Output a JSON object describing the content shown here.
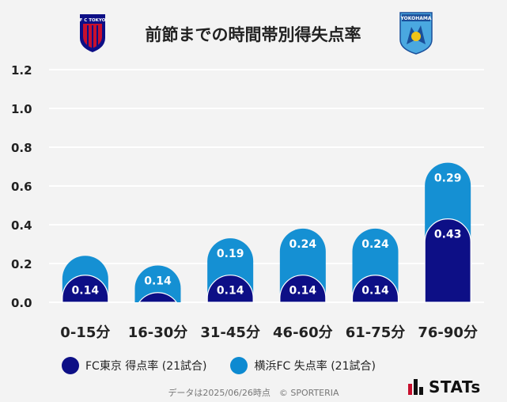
{
  "title": "前節までの時間帯別得失点率",
  "home_team": {
    "emblem_text": "F C TOKYO"
  },
  "away_team": {
    "emblem_text": "YOKOHAMA"
  },
  "colors": {
    "home": "#0d0f86",
    "away": "#0d8ad1",
    "away_fill": "#1590d3",
    "grid": "#ffffff",
    "axis_text": "#222222"
  },
  "chart_data": {
    "type": "bar",
    "stacked": true,
    "categories": [
      "0-15分",
      "16-30分",
      "31-45分",
      "46-60分",
      "61-75分",
      "76-90分"
    ],
    "series": [
      {
        "name": "FC東京 得点率 (21試合)",
        "values": [
          0.14,
          0.05,
          0.14,
          0.14,
          0.14,
          0.43
        ],
        "labels": [
          "0.14",
          "",
          "0.14",
          "0.14",
          "0.14",
          "0.43"
        ]
      },
      {
        "name": "横浜FC 失点率 (21試合)",
        "values": [
          0.1,
          0.14,
          0.19,
          0.24,
          0.24,
          0.29
        ],
        "labels": [
          "",
          "0.14",
          "0.19",
          "0.24",
          "0.24",
          "0.29"
        ]
      }
    ],
    "ylim": [
      0,
      1.2
    ],
    "yticks": [
      "0.0",
      "0.2",
      "0.4",
      "0.6",
      "0.8",
      "1.0",
      "1.2"
    ],
    "grid": true,
    "legend": "bottom"
  },
  "legend": {
    "home_label": "FC東京 得点率 (21試合)",
    "away_label": "横浜FC 失点率 (21試合)"
  },
  "footer": "データは2025/06/26時点　© SPORTERIA",
  "brand": "STATs"
}
